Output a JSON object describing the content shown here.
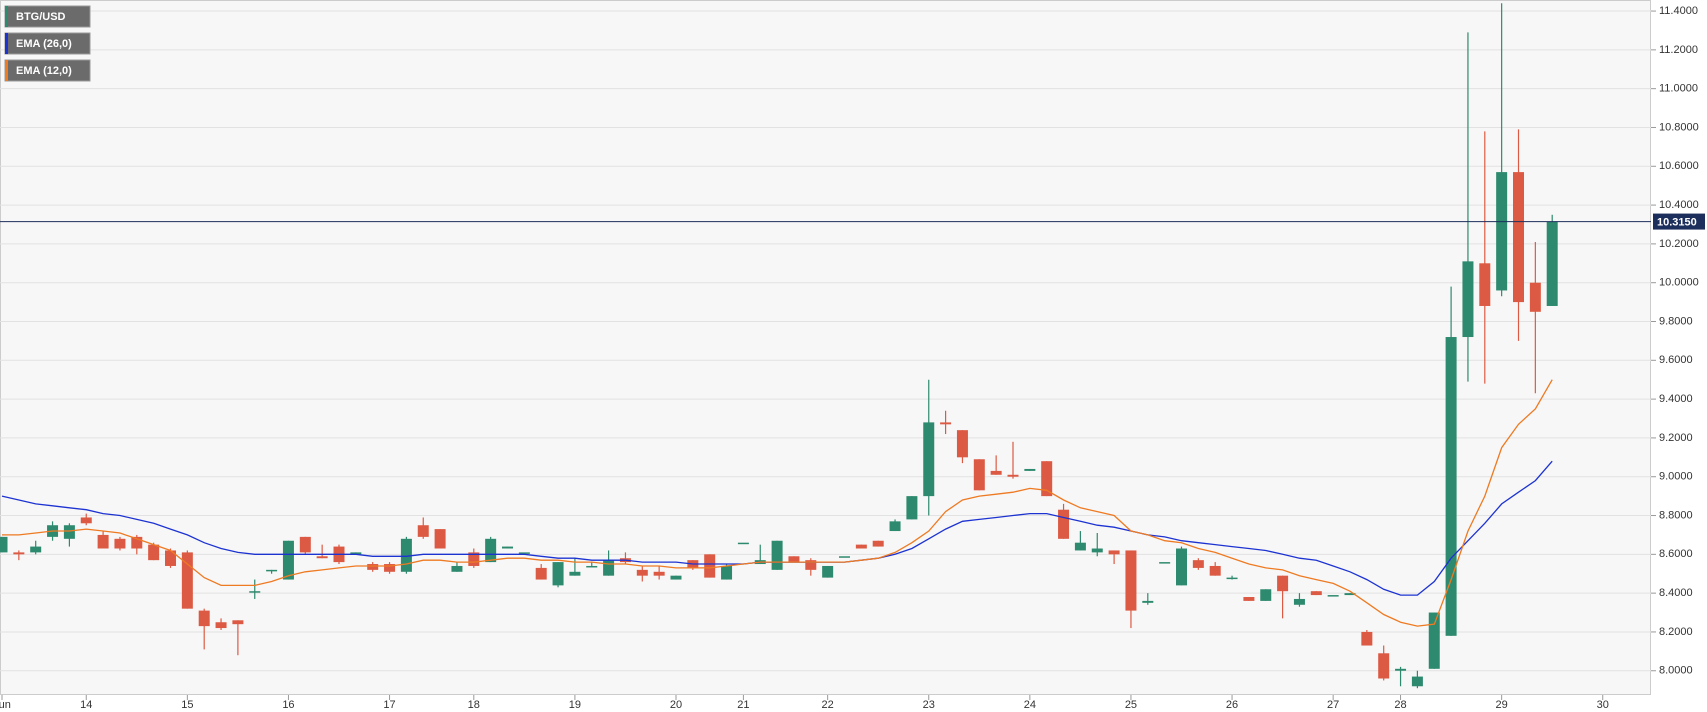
{
  "chart_data": {
    "type": "candlestick",
    "symbol": "BTG/USD",
    "categories": [
      "Jun",
      null,
      null,
      null,
      null,
      "14",
      null,
      null,
      null,
      null,
      null,
      "15",
      null,
      null,
      null,
      null,
      null,
      "16",
      null,
      null,
      null,
      null,
      null,
      "17",
      null,
      null,
      null,
      null,
      "18",
      null,
      null,
      null,
      null,
      null,
      "19",
      null,
      null,
      null,
      null,
      null,
      "20",
      null,
      null,
      null,
      "21",
      null,
      null,
      null,
      null,
      "22",
      null,
      null,
      null,
      null,
      null,
      "23",
      null,
      null,
      null,
      null,
      null,
      "24",
      null,
      null,
      null,
      null,
      null,
      "25",
      null,
      null,
      null,
      null,
      null,
      "26",
      null,
      null,
      null,
      null,
      null,
      "27",
      null,
      null,
      null,
      "28",
      null,
      null,
      null,
      null,
      null,
      "29",
      null,
      null,
      null,
      null,
      null,
      "30"
    ],
    "open": [
      8.61,
      8.61,
      8.61,
      8.69,
      8.68,
      8.79,
      8.7,
      8.68,
      8.69,
      8.65,
      8.62,
      8.61,
      8.31,
      8.25,
      8.26,
      8.41,
      8.52,
      8.47,
      8.69,
      8.59,
      8.64,
      8.6,
      8.55,
      8.55,
      8.51,
      8.75,
      8.73,
      8.51,
      8.61,
      8.56,
      8.63,
      8.61,
      8.53,
      8.44,
      8.49,
      8.54,
      8.49,
      8.58,
      8.52,
      8.51,
      8.47,
      8.57,
      8.6,
      8.47,
      8.66,
      8.55,
      8.52,
      8.59,
      8.57,
      8.48,
      8.59,
      8.65,
      8.67,
      8.72,
      8.78,
      8.9,
      9.28,
      9.24,
      9.09,
      9.03,
      9.01,
      9.03,
      9.08,
      8.83,
      8.62,
      8.61,
      8.62,
      8.62,
      8.35,
      8.56,
      8.44,
      8.57,
      8.54,
      8.48,
      8.38,
      8.36,
      8.49,
      8.34,
      8.41,
      8.39,
      8.39,
      8.2,
      8.09,
      8.0,
      7.92,
      8.01,
      8.18,
      9.72,
      10.1,
      9.96,
      10.57,
      10.0,
      9.88,
      null,
      null,
      null
    ],
    "high": [
      8.69,
      8.62,
      8.67,
      8.77,
      8.76,
      8.81,
      8.72,
      8.69,
      8.7,
      8.66,
      8.63,
      8.62,
      8.32,
      8.27,
      8.26,
      8.47,
      8.52,
      8.67,
      8.69,
      8.65,
      8.65,
      8.61,
      8.56,
      8.56,
      8.69,
      8.79,
      8.73,
      8.56,
      8.63,
      8.69,
      8.64,
      8.61,
      8.55,
      8.56,
      8.58,
      8.56,
      8.62,
      8.61,
      8.54,
      8.54,
      8.49,
      8.57,
      8.6,
      8.55,
      8.66,
      8.65,
      8.67,
      8.59,
      8.58,
      8.54,
      8.59,
      8.65,
      8.67,
      8.78,
      8.9,
      9.5,
      9.34,
      9.24,
      9.09,
      9.11,
      9.18,
      9.04,
      9.08,
      8.86,
      8.72,
      8.71,
      8.62,
      8.62,
      8.4,
      8.56,
      8.64,
      8.58,
      8.56,
      8.49,
      8.38,
      8.42,
      8.49,
      8.4,
      8.41,
      8.39,
      8.4,
      8.21,
      8.13,
      8.02,
      8.0,
      8.3,
      9.98,
      11.29,
      10.78,
      11.44,
      10.79,
      10.21,
      10.35,
      null,
      null,
      null
    ],
    "low": [
      8.61,
      8.57,
      8.6,
      8.67,
      8.64,
      8.75,
      8.63,
      8.62,
      8.6,
      8.57,
      8.53,
      8.32,
      8.11,
      8.21,
      8.08,
      8.37,
      8.5,
      8.47,
      8.6,
      8.58,
      8.55,
      8.6,
      8.51,
      8.5,
      8.5,
      8.68,
      8.63,
      8.51,
      8.53,
      8.56,
      8.63,
      8.61,
      8.47,
      8.43,
      8.49,
      8.54,
      8.49,
      8.55,
      8.46,
      8.47,
      8.47,
      8.52,
      8.48,
      8.47,
      8.66,
      8.55,
      8.52,
      8.56,
      8.49,
      8.48,
      8.59,
      8.63,
      8.64,
      8.72,
      8.78,
      8.8,
      9.22,
      9.07,
      8.93,
      9.01,
      8.99,
      9.03,
      8.9,
      8.68,
      8.62,
      8.59,
      8.55,
      8.22,
      8.34,
      8.56,
      8.44,
      8.52,
      8.49,
      8.47,
      8.36,
      8.36,
      8.27,
      8.33,
      8.39,
      8.39,
      8.39,
      8.13,
      7.95,
      7.92,
      7.91,
      8.01,
      8.18,
      9.49,
      9.48,
      9.93,
      9.7,
      9.43,
      9.88,
      null,
      null,
      null
    ],
    "close": [
      8.69,
      8.6,
      8.64,
      8.75,
      8.75,
      8.76,
      8.63,
      8.63,
      8.63,
      8.57,
      8.54,
      8.32,
      8.23,
      8.22,
      8.24,
      8.41,
      8.52,
      8.67,
      8.61,
      8.58,
      8.56,
      8.61,
      8.52,
      8.51,
      8.68,
      8.69,
      8.63,
      8.54,
      8.54,
      8.68,
      8.64,
      8.61,
      8.47,
      8.56,
      8.51,
      8.54,
      8.57,
      8.56,
      8.49,
      8.49,
      8.49,
      8.53,
      8.48,
      8.54,
      8.66,
      8.57,
      8.67,
      8.56,
      8.52,
      8.54,
      8.59,
      8.63,
      8.64,
      8.77,
      8.9,
      9.28,
      9.27,
      9.1,
      8.93,
      9.01,
      9.0,
      9.04,
      8.9,
      8.68,
      8.66,
      8.63,
      8.6,
      8.31,
      8.36,
      8.56,
      8.63,
      8.53,
      8.49,
      8.48,
      8.36,
      8.42,
      8.41,
      8.37,
      8.39,
      8.39,
      8.4,
      8.13,
      7.96,
      8.01,
      7.97,
      8.3,
      9.72,
      10.11,
      9.88,
      10.57,
      9.9,
      9.85,
      10.315,
      null,
      null,
      null
    ],
    "up_color": "#2e8a6e",
    "down_color": "#dc5a44",
    "series": [
      {
        "name": "EMA (26,0)",
        "color": "#1d33d1",
        "values": [
          8.9,
          8.88,
          8.86,
          8.85,
          8.84,
          8.83,
          8.81,
          8.8,
          8.78,
          8.76,
          8.73,
          8.7,
          8.66,
          8.63,
          8.61,
          8.6,
          8.6,
          8.6,
          8.6,
          8.6,
          8.6,
          8.6,
          8.59,
          8.59,
          8.59,
          8.6,
          8.6,
          8.6,
          8.6,
          8.6,
          8.6,
          8.6,
          8.59,
          8.58,
          8.58,
          8.57,
          8.57,
          8.57,
          8.56,
          8.56,
          8.56,
          8.55,
          8.55,
          8.55,
          8.55,
          8.56,
          8.56,
          8.56,
          8.56,
          8.56,
          8.56,
          8.57,
          8.58,
          8.6,
          8.63,
          8.68,
          8.73,
          8.77,
          8.78,
          8.79,
          8.8,
          8.81,
          8.81,
          8.79,
          8.77,
          8.75,
          8.74,
          8.72,
          8.7,
          8.69,
          8.67,
          8.66,
          8.65,
          8.64,
          8.63,
          8.62,
          8.6,
          8.58,
          8.57,
          8.54,
          8.51,
          8.47,
          8.42,
          8.39,
          8.39,
          8.46,
          8.58,
          8.67,
          8.76,
          8.86,
          8.92,
          8.98,
          9.08,
          null,
          null,
          null
        ]
      },
      {
        "name": "EMA (12,0)",
        "color": "#ee7a22",
        "values": [
          8.7,
          8.7,
          8.71,
          8.72,
          8.72,
          8.73,
          8.72,
          8.71,
          8.68,
          8.65,
          8.62,
          8.55,
          8.48,
          8.44,
          8.44,
          8.44,
          8.46,
          8.49,
          8.51,
          8.52,
          8.53,
          8.54,
          8.54,
          8.54,
          8.55,
          8.57,
          8.57,
          8.56,
          8.56,
          8.57,
          8.58,
          8.58,
          8.57,
          8.57,
          8.56,
          8.56,
          8.55,
          8.55,
          8.54,
          8.54,
          8.53,
          8.53,
          8.53,
          8.54,
          8.55,
          8.56,
          8.56,
          8.56,
          8.56,
          8.56,
          8.56,
          8.57,
          8.58,
          8.61,
          8.66,
          8.72,
          8.82,
          8.88,
          8.9,
          8.91,
          8.92,
          8.94,
          8.93,
          8.88,
          8.84,
          8.82,
          8.8,
          8.72,
          8.7,
          8.67,
          8.66,
          8.63,
          8.61,
          8.58,
          8.55,
          8.53,
          8.52,
          8.49,
          8.47,
          8.45,
          8.41,
          8.35,
          8.29,
          8.25,
          8.23,
          8.24,
          8.47,
          8.72,
          8.9,
          9.15,
          9.27,
          9.35,
          9.5,
          null,
          null,
          null
        ]
      }
    ],
    "last_price": {
      "value": 10.315,
      "label": "10.3150"
    },
    "ylim": [
      7.875,
      11.457
    ],
    "yticks": [
      {
        "value": 8,
        "label": "8.0000"
      },
      {
        "value": 8.2,
        "label": "8.2000"
      },
      {
        "value": 8.4,
        "label": "8.4000"
      },
      {
        "value": 8.6,
        "label": "8.6000"
      },
      {
        "value": 8.8,
        "label": "8.8000"
      },
      {
        "value": 9,
        "label": "9.0000"
      },
      {
        "value": 9.2,
        "label": "9.2000"
      },
      {
        "value": 9.4,
        "label": "9.4000"
      },
      {
        "value": 9.6,
        "label": "9.6000"
      },
      {
        "value": 9.8,
        "label": "9.8000"
      },
      {
        "value": 10,
        "label": "10.0000"
      },
      {
        "value": 10.2,
        "label": "10.2000"
      },
      {
        "value": 10.4,
        "label": "10.4000"
      },
      {
        "value": 10.6,
        "label": "10.6000"
      },
      {
        "value": 10.8,
        "label": "10.8000"
      },
      {
        "value": 11,
        "label": "11.0000"
      },
      {
        "value": 11.2,
        "label": "11.2000"
      },
      {
        "value": 11.4,
        "label": "11.4000"
      }
    ],
    "grid": true
  }
}
